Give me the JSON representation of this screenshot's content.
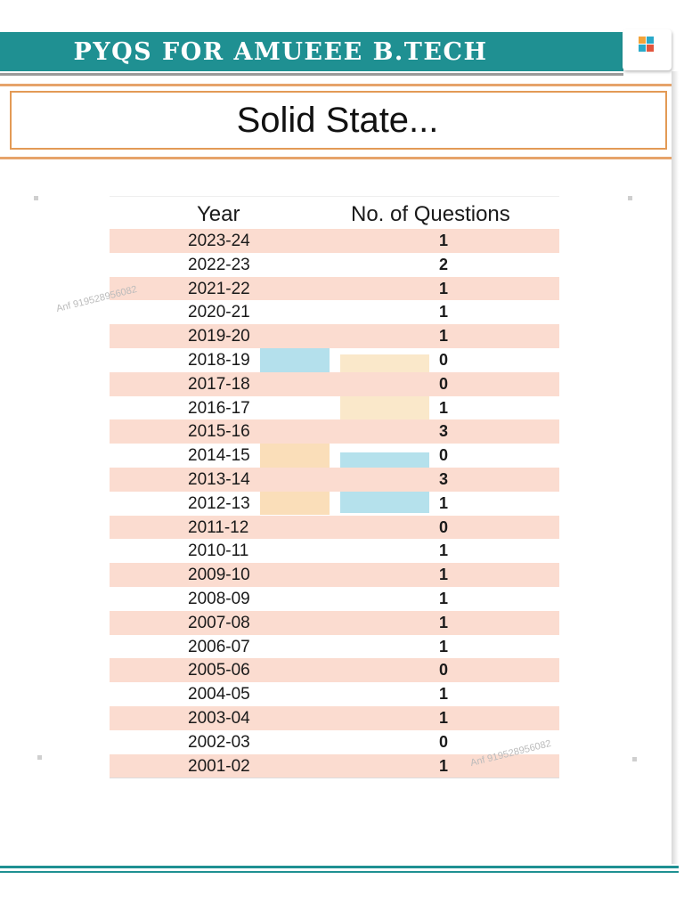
{
  "header": {
    "title": "PYQS FOR AMUEEE B.TECH"
  },
  "topic": {
    "title": "Solid State..."
  },
  "table": {
    "columns": [
      "Year",
      "No. of Questions"
    ],
    "rows": [
      {
        "year": "2023-24",
        "count": "1"
      },
      {
        "year": "2022-23",
        "count": "2"
      },
      {
        "year": "2021-22",
        "count": "1"
      },
      {
        "year": "2020-21",
        "count": "1"
      },
      {
        "year": "2019-20",
        "count": "1"
      },
      {
        "year": "2018-19",
        "count": "0"
      },
      {
        "year": "2017-18",
        "count": "0"
      },
      {
        "year": "2016-17",
        "count": "1"
      },
      {
        "year": "2015-16",
        "count": "3"
      },
      {
        "year": "2014-15",
        "count": "0"
      },
      {
        "year": "2013-14",
        "count": "3"
      },
      {
        "year": "2012-13",
        "count": "1"
      },
      {
        "year": "2011-12",
        "count": "0"
      },
      {
        "year": "2010-11",
        "count": "1"
      },
      {
        "year": "2009-10",
        "count": "1"
      },
      {
        "year": "2008-09",
        "count": "1"
      },
      {
        "year": "2007-08",
        "count": "1"
      },
      {
        "year": "2006-07",
        "count": "1"
      },
      {
        "year": "2005-06",
        "count": "0"
      },
      {
        "year": "2004-05",
        "count": "1"
      },
      {
        "year": "2003-04",
        "count": "1"
      },
      {
        "year": "2002-03",
        "count": "0"
      },
      {
        "year": "2001-02",
        "count": "1"
      }
    ]
  },
  "watermark_texts": [
    "Anf 919528956082",
    "Anf 919528956082"
  ],
  "colors": {
    "header_band": "#1f9092",
    "frame_accent": "#e39a55",
    "row_shade": "#fbdcd0",
    "logo_blue": "#2aa9c9",
    "logo_orange": "#f2a33a",
    "logo_red": "#e2553d"
  },
  "icons": {
    "logo": "brand-logo-icon"
  }
}
